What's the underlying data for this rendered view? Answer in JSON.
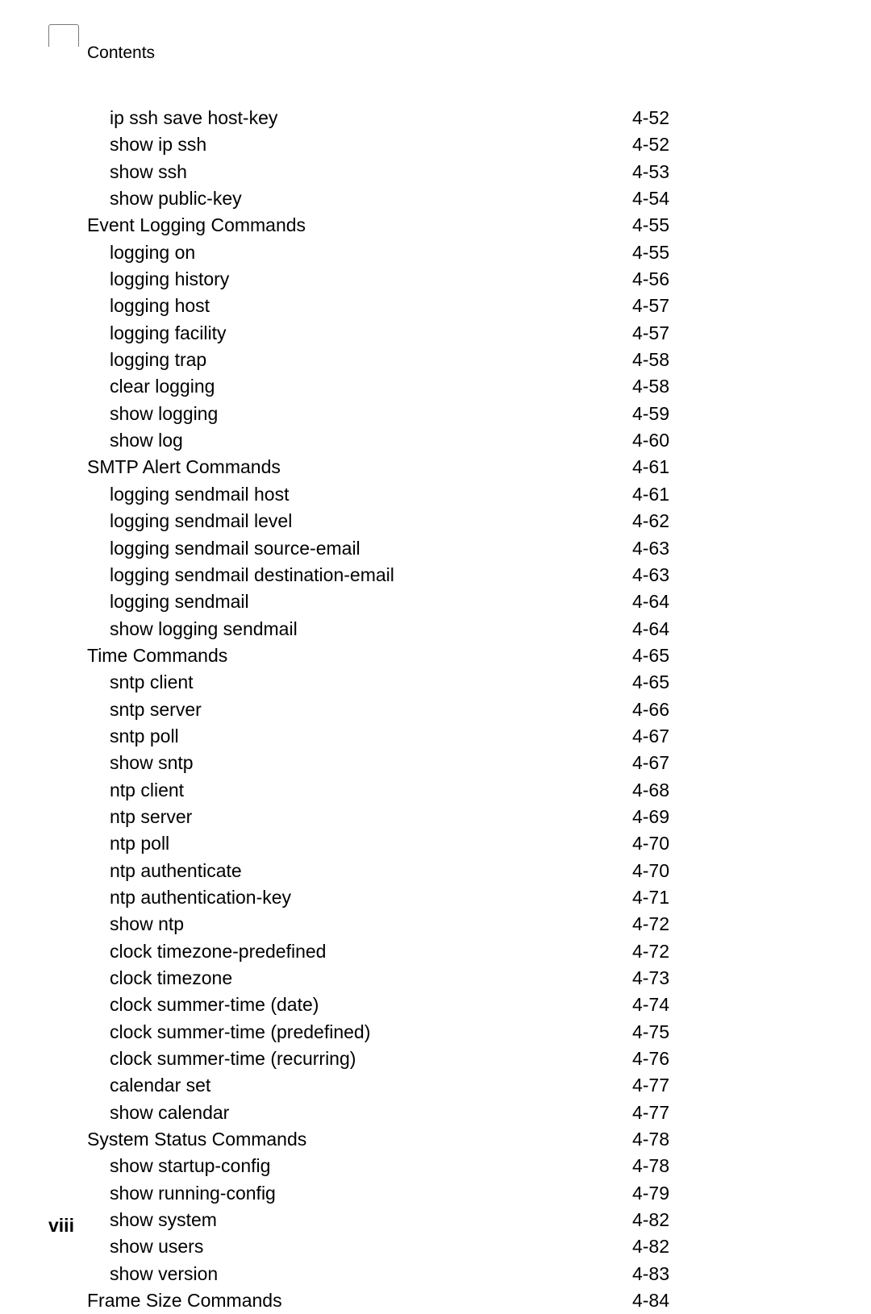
{
  "header": {
    "tab_label": "Contents"
  },
  "footer": {
    "page_number": "viii"
  },
  "toc": {
    "entries": [
      {
        "level": 1,
        "title": "ip ssh save host-key",
        "page": "4-52"
      },
      {
        "level": 1,
        "title": "show ip ssh",
        "page": "4-52"
      },
      {
        "level": 1,
        "title": "show ssh",
        "page": "4-53"
      },
      {
        "level": 1,
        "title": "show public-key",
        "page": "4-54"
      },
      {
        "level": 0,
        "title": "Event Logging Commands",
        "page": "4-55"
      },
      {
        "level": 1,
        "title": "logging on",
        "page": "4-55"
      },
      {
        "level": 1,
        "title": "logging history",
        "page": "4-56"
      },
      {
        "level": 1,
        "title": "logging host",
        "page": "4-57"
      },
      {
        "level": 1,
        "title": "logging facility",
        "page": "4-57"
      },
      {
        "level": 1,
        "title": "logging trap",
        "page": "4-58"
      },
      {
        "level": 1,
        "title": "clear logging",
        "page": "4-58"
      },
      {
        "level": 1,
        "title": "show logging",
        "page": "4-59"
      },
      {
        "level": 1,
        "title": "show log",
        "page": "4-60"
      },
      {
        "level": 0,
        "title": "SMTP Alert Commands",
        "page": "4-61"
      },
      {
        "level": 1,
        "title": "logging sendmail host",
        "page": "4-61"
      },
      {
        "level": 1,
        "title": "logging sendmail level",
        "page": "4-62"
      },
      {
        "level": 1,
        "title": "logging sendmail source-email",
        "page": "4-63"
      },
      {
        "level": 1,
        "title": "logging sendmail destination-email",
        "page": "4-63"
      },
      {
        "level": 1,
        "title": "logging sendmail",
        "page": "4-64"
      },
      {
        "level": 1,
        "title": "show logging sendmail",
        "page": "4-64"
      },
      {
        "level": 0,
        "title": "Time Commands",
        "page": "4-65"
      },
      {
        "level": 1,
        "title": "sntp client",
        "page": "4-65"
      },
      {
        "level": 1,
        "title": "sntp server",
        "page": "4-66"
      },
      {
        "level": 1,
        "title": "sntp poll",
        "page": "4-67"
      },
      {
        "level": 1,
        "title": "show sntp",
        "page": "4-67"
      },
      {
        "level": 1,
        "title": "ntp client",
        "page": "4-68"
      },
      {
        "level": 1,
        "title": "ntp server",
        "page": "4-69"
      },
      {
        "level": 1,
        "title": "ntp poll",
        "page": "4-70"
      },
      {
        "level": 1,
        "title": "ntp authenticate",
        "page": "4-70"
      },
      {
        "level": 1,
        "title": "ntp authentication-key",
        "page": "4-71"
      },
      {
        "level": 1,
        "title": "show ntp",
        "page": "4-72"
      },
      {
        "level": 1,
        "title": "clock timezone-predefined",
        "page": "4-72"
      },
      {
        "level": 1,
        "title": "clock timezone",
        "page": "4-73"
      },
      {
        "level": 1,
        "title": "clock summer-time (date)",
        "page": "4-74"
      },
      {
        "level": 1,
        "title": "clock summer-time (predefined)",
        "page": "4-75"
      },
      {
        "level": 1,
        "title": "clock summer-time (recurring)",
        "page": "4-76"
      },
      {
        "level": 1,
        "title": "calendar set",
        "page": "4-77"
      },
      {
        "level": 1,
        "title": "show calendar",
        "page": "4-77"
      },
      {
        "level": 0,
        "title": "System Status Commands",
        "page": "4-78"
      },
      {
        "level": 1,
        "title": "show startup-config",
        "page": "4-78"
      },
      {
        "level": 1,
        "title": "show running-config",
        "page": "4-79"
      },
      {
        "level": 1,
        "title": "show system",
        "page": "4-82"
      },
      {
        "level": 1,
        "title": "show users",
        "page": "4-82"
      },
      {
        "level": 1,
        "title": "show version",
        "page": "4-83"
      },
      {
        "level": 0,
        "title": "Frame Size Commands",
        "page": "4-84"
      }
    ]
  }
}
